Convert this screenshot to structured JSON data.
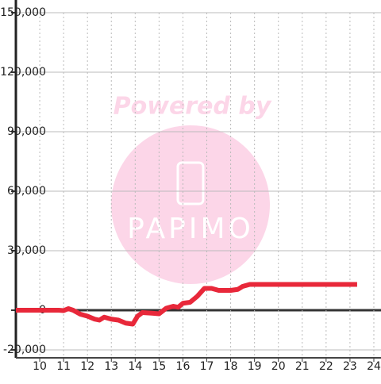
{
  "chart_data": {
    "type": "line",
    "watermark": {
      "line1": "Powered by",
      "line2": "PAPIMO"
    },
    "xlim": [
      9,
      24.3
    ],
    "xticks": [
      10,
      11,
      12,
      13,
      14,
      15,
      16,
      17,
      18,
      19,
      20,
      21,
      22,
      23,
      24
    ],
    "ylim": [
      -24000,
      150000
    ],
    "yticks": [
      {
        "value": -20000,
        "label": "-20,000"
      },
      0,
      {
        "value": 30000,
        "label": "30,000"
      },
      {
        "value": 60000,
        "label": "60,000"
      },
      {
        "value": 90000,
        "label": "90,000"
      },
      {
        "value": 120000,
        "label": "120,000"
      },
      {
        "value": 150000,
        "label": "150,000"
      }
    ],
    "grid": true,
    "series": [
      {
        "color": "#e8283a",
        "x": [
          9,
          10,
          10.8,
          11.0,
          11.2,
          11.4,
          11.7,
          12.0,
          12.3,
          12.5,
          12.7,
          13.0,
          13.3,
          13.6,
          13.9,
          14.1,
          14.3,
          14.7,
          15.0,
          15.3,
          15.6,
          15.8,
          16.0,
          16.3,
          16.6,
          16.9,
          17.2,
          17.5,
          18.0,
          18.3,
          18.5,
          18.8,
          19.5,
          23.3
        ],
        "values": [
          0,
          0,
          0,
          -200,
          800,
          0,
          -2000,
          -3000,
          -4500,
          -5000,
          -3500,
          -4500,
          -5000,
          -6500,
          -7000,
          -3000,
          -1200,
          -1500,
          -1800,
          1000,
          2000,
          1500,
          3500,
          4000,
          7000,
          11000,
          11000,
          10000,
          10000,
          10500,
          12000,
          13000,
          13000,
          13000
        ]
      }
    ]
  }
}
